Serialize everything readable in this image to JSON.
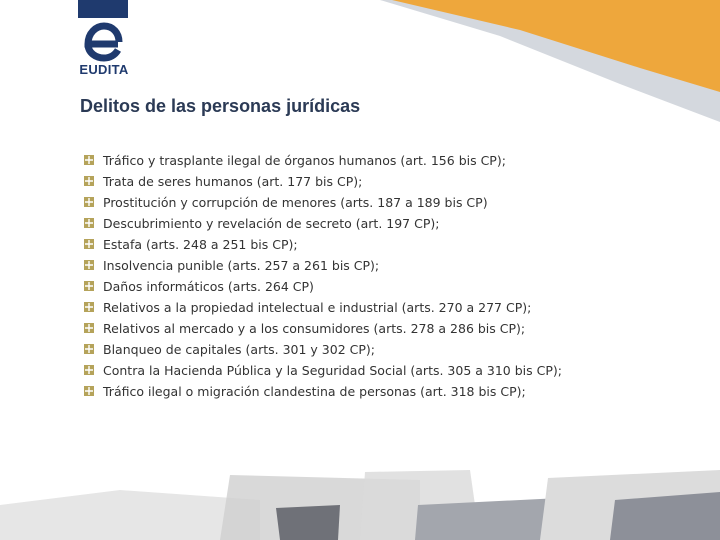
{
  "logo": {
    "text": "EUDITA"
  },
  "title": "Delitos de las personas jurídicas",
  "items": [
    "Tráfico y trasplante ilegal de órganos humanos (art. 156 bis CP);",
    "Trata de seres humanos (art. 177 bis CP);",
    "Prostitución y corrupción de menores (arts. 187 a 189 bis CP)",
    "Descubrimiento y revelación de secreto (art. 197 CP);",
    "Estafa (arts. 248 a 251 bis CP);",
    "Insolvencia punible (arts. 257 a 261 bis CP);",
    "Daños informáticos (arts. 264 CP)",
    "Relativos a la propiedad intelectual e industrial (arts. 270 a 277 CP);",
    "Relativos al mercado y a los consumidores (arts. 278 a 286 bis CP);",
    "Blanqueo de capitales (arts. 301 y 302 CP);",
    "Contra la Hacienda Pública y la Seguridad Social (arts. 305 a 310 bis CP);",
    "Tráfico ilegal o migración clandestina de personas (art. 318 bis CP);"
  ]
}
